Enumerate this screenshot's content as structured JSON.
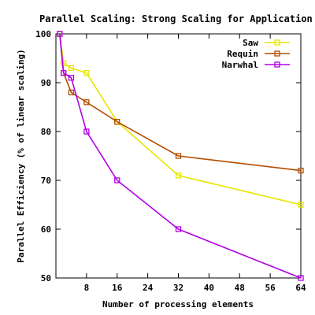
{
  "chart_data": {
    "type": "line",
    "title": "Parallel Scaling: Strong Scaling for Application X",
    "xlabel": "Number of processing elements",
    "ylabel": "Parallel Efficiency (% of linear scaling)",
    "xlim": [
      0,
      64
    ],
    "ylim": [
      50,
      100
    ],
    "xticks": [
      8,
      16,
      24,
      32,
      40,
      48,
      56,
      64
    ],
    "yticks": [
      50,
      60,
      70,
      80,
      90,
      100
    ],
    "grid": false,
    "legend_position": "top-right",
    "series": [
      {
        "name": "Saw",
        "color": "#e6e600",
        "marker": "square",
        "x": [
          1,
          2,
          4,
          8,
          16,
          32,
          64
        ],
        "y": [
          100,
          94,
          93,
          92,
          82,
          71,
          65
        ]
      },
      {
        "name": "Requin",
        "color": "#b34d00",
        "marker": "square",
        "x": [
          1,
          2,
          4,
          8,
          16,
          32,
          64
        ],
        "y": [
          100,
          92,
          88,
          86,
          82,
          75,
          72
        ]
      },
      {
        "name": "Narwhal",
        "color": "#b300e6",
        "marker": "square",
        "x": [
          1,
          2,
          4,
          8,
          16,
          32,
          64
        ],
        "y": [
          100,
          92,
          91,
          80,
          70,
          60,
          50
        ]
      }
    ]
  }
}
